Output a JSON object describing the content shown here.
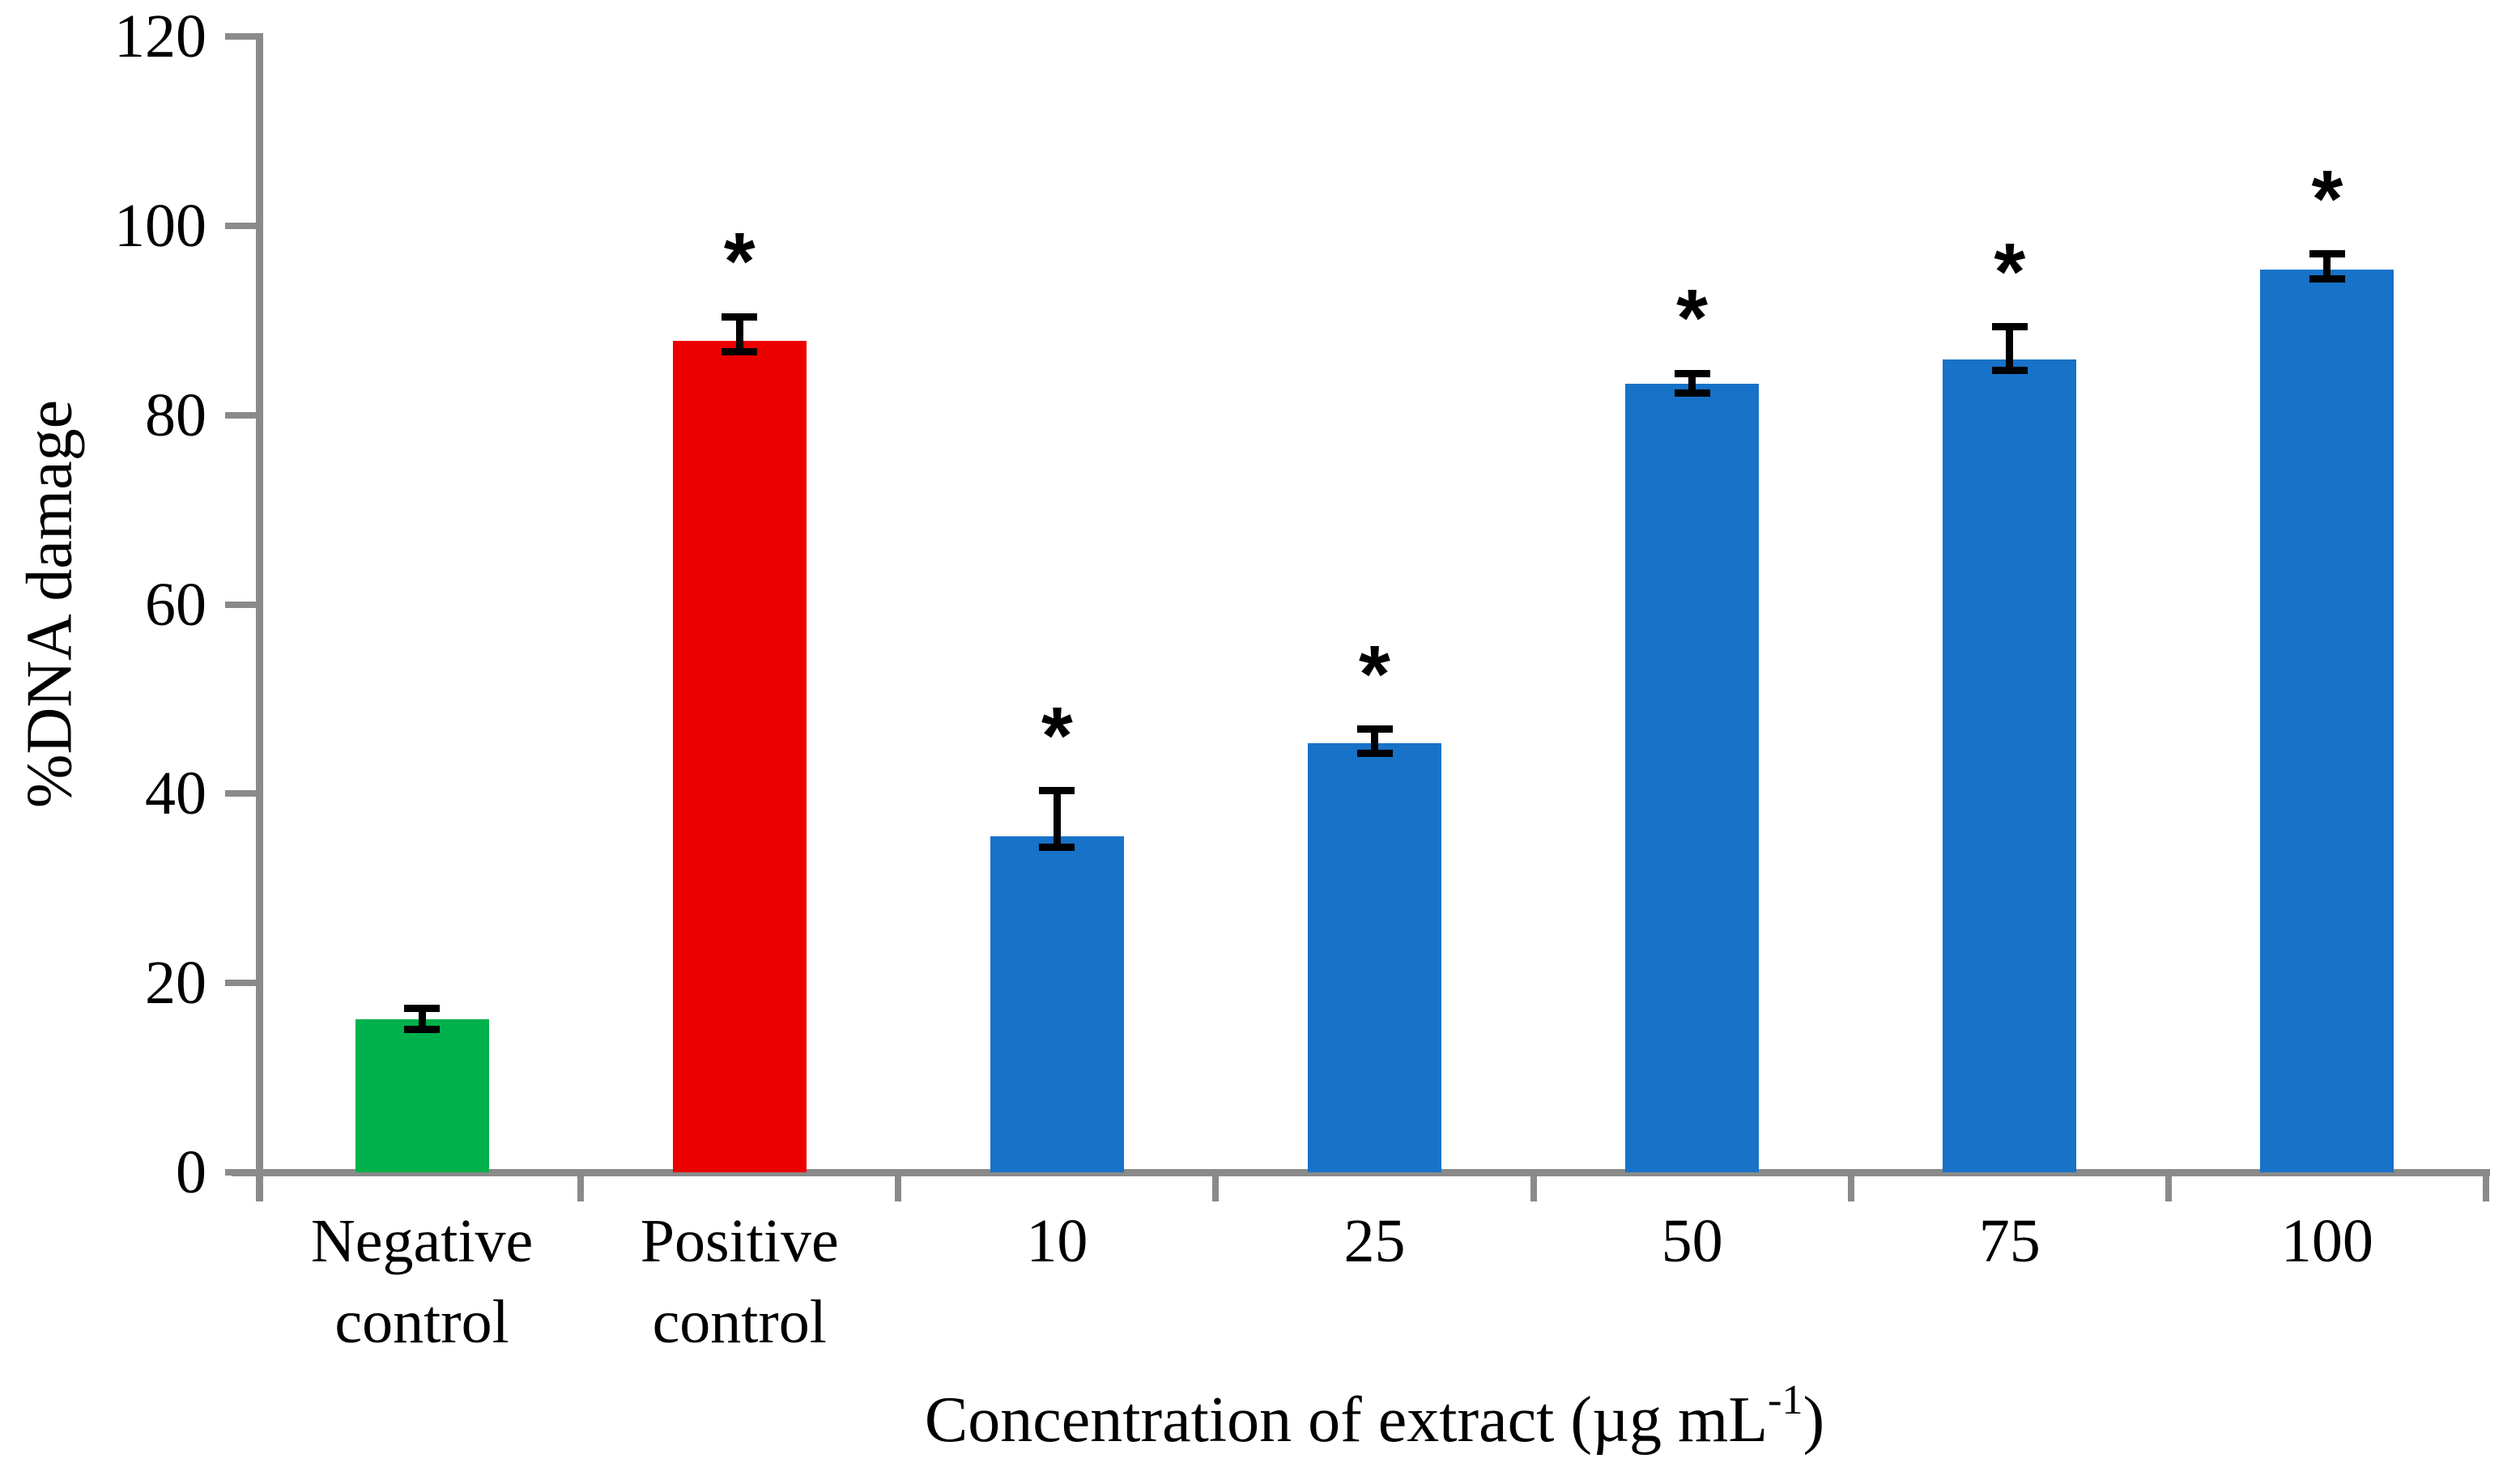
{
  "chart_data": {
    "type": "bar",
    "title": "",
    "xlabel": "Concentration of extract (µg mL-1)",
    "xlabel_parts": {
      "prefix": "Concentration of extract (µg mL",
      "superscript": "-1",
      "suffix": ")"
    },
    "ylabel": "%DNA damage",
    "categories": [
      "Negative control",
      "Positive control",
      "10",
      "25",
      "50",
      "75",
      "100"
    ],
    "category_label_lines": [
      [
        "Negative",
        "control"
      ],
      [
        "Positive",
        "control"
      ],
      [
        "10"
      ],
      [
        "25"
      ],
      [
        "50"
      ],
      [
        "75"
      ],
      [
        "100"
      ]
    ],
    "values": [
      16.2,
      87.8,
      35.5,
      45.3,
      83.3,
      85.9,
      95.4
    ],
    "error_up": [
      1.1,
      2.6,
      4.8,
      1.5,
      1.1,
      3.4,
      1.6
    ],
    "error_down": [
      1.1,
      1.1,
      1.2,
      1.0,
      1.0,
      1.2,
      1.0
    ],
    "significant": [
      false,
      true,
      true,
      true,
      true,
      true,
      true
    ],
    "significance_marker": "*",
    "bar_colors": [
      "#00b04c",
      "#ec0000",
      "#1772c8",
      "#1772c8",
      "#1772c8",
      "#1772c8",
      "#1772c8"
    ],
    "axis_color": "#8a8a8a",
    "error_bar_color": "#000000",
    "ylim": [
      0,
      120
    ],
    "ytick_step": 20,
    "yticks": [
      0,
      20,
      40,
      60,
      80,
      100,
      120
    ],
    "grid": "off",
    "legend": "none"
  }
}
